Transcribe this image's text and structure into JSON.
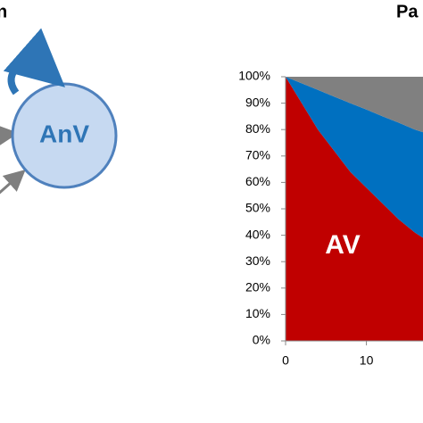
{
  "header": {
    "left": "n",
    "right": "Pa"
  },
  "diagram": {
    "node": "AnV"
  },
  "chart_data": {
    "type": "stacked-area",
    "x": [
      0,
      2,
      4,
      6,
      8,
      10,
      12,
      14,
      16,
      17
    ],
    "series": [
      {
        "name": "AV",
        "color": "#c00000",
        "values": [
          100,
          90,
          80,
          72,
          64,
          58,
          52,
          46,
          41,
          39
        ]
      },
      {
        "color": "#0070c0",
        "values": [
          0,
          7.5,
          15,
          20.5,
          26,
          29.6,
          33,
          36.6,
          39,
          40
        ]
      },
      {
        "color": "#808080",
        "values": [
          0,
          2.5,
          5,
          7.5,
          10,
          12.4,
          15,
          17.4,
          20,
          21
        ]
      }
    ],
    "xlim": [
      0,
      17
    ],
    "xticks": [
      0,
      10
    ],
    "ylim": [
      0,
      100
    ],
    "yticks": [
      {
        "value": 0,
        "label": "0%"
      },
      {
        "value": 10,
        "label": "10%"
      },
      {
        "value": 20,
        "label": "20%"
      },
      {
        "value": 30,
        "label": "30%"
      },
      {
        "value": 40,
        "label": "40%"
      },
      {
        "value": 50,
        "label": "50%"
      },
      {
        "value": 60,
        "label": "60%"
      },
      {
        "value": 70,
        "label": "70%"
      },
      {
        "value": 80,
        "label": "80%"
      },
      {
        "value": 90,
        "label": "90%"
      },
      {
        "value": 100,
        "label": "100%"
      }
    ]
  }
}
